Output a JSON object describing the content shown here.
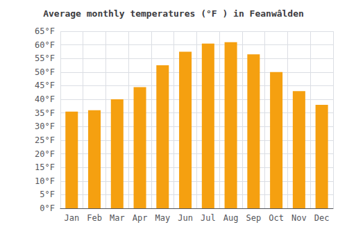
{
  "chart_data": {
    "type": "bar",
    "title": "Average monthly temperatures (°F ) in Feanwâlden",
    "categories": [
      "Jan",
      "Feb",
      "Mar",
      "Apr",
      "May",
      "Jun",
      "Jul",
      "Aug",
      "Sep",
      "Oct",
      "Nov",
      "Dec"
    ],
    "values": [
      35.5,
      36.0,
      40.0,
      44.5,
      52.5,
      57.5,
      60.5,
      61.0,
      56.5,
      50.0,
      43.0,
      38.0
    ],
    "color": "#F5A010",
    "ylim": [
      0,
      65
    ],
    "yticks": [
      {
        "value": 0,
        "label": "0°F"
      },
      {
        "value": 5,
        "label": "5°F"
      },
      {
        "value": 10,
        "label": "10°F"
      },
      {
        "value": 15,
        "label": "15°F"
      },
      {
        "value": 20,
        "label": "20°F"
      },
      {
        "value": 25,
        "label": "25°F"
      },
      {
        "value": 30,
        "label": "30°F"
      },
      {
        "value": 35,
        "label": "35°F"
      },
      {
        "value": 40,
        "label": "40°F"
      },
      {
        "value": 45,
        "label": "45°F"
      },
      {
        "value": 50,
        "label": "50°F"
      },
      {
        "value": 55,
        "label": "55°F"
      },
      {
        "value": 60,
        "label": "60°F"
      },
      {
        "value": 65,
        "label": "65°F"
      }
    ],
    "grid": true
  }
}
